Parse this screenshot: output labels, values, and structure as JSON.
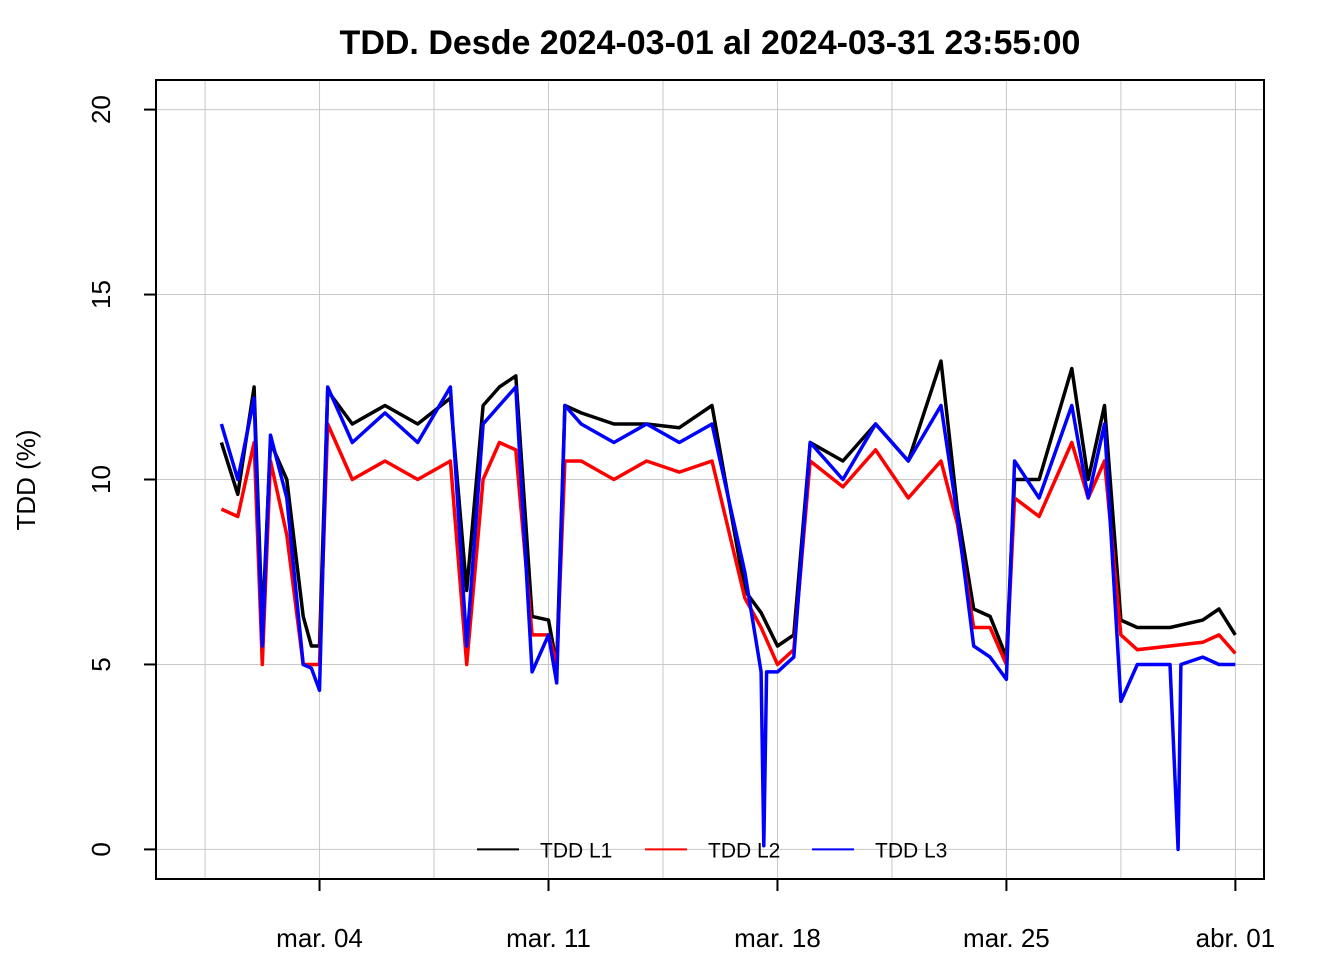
{
  "chart_data": {
    "type": "line",
    "title": "TDD. Desde  2024-03-01  al  2024-03-31 23:55:00",
    "xlabel": "",
    "ylabel": "TDD (%)",
    "xlim": [
      "2024-02-28 00:00",
      "2024-04-01 21:00"
    ],
    "ylim": [
      -0.8,
      20.8
    ],
    "y_ticks": [
      0,
      5,
      10,
      15,
      20
    ],
    "x_ticks": [
      {
        "date": "2024-03-04",
        "label": "mar. 04"
      },
      {
        "date": "2024-03-11",
        "label": "mar. 11"
      },
      {
        "date": "2024-03-18",
        "label": "mar. 18"
      },
      {
        "date": "2024-03-25",
        "label": "mar. 25"
      },
      {
        "date": "2024-04-01",
        "label": "abr. 01"
      }
    ],
    "grid": true,
    "legend_placement": "bottom",
    "x_unit": "date",
    "series": [
      {
        "name": "TDD L1",
        "color": "#000000",
        "x": [
          "2024-03-01 00:00",
          "2024-03-01 12:00",
          "2024-03-02 00:00",
          "2024-03-02 06:00",
          "2024-03-02 12:00",
          "2024-03-03 00:00",
          "2024-03-03 12:00",
          "2024-03-03 18:00",
          "2024-03-04 00:00",
          "2024-03-04 06:00",
          "2024-03-05 00:00",
          "2024-03-06 00:00",
          "2024-03-07 00:00",
          "2024-03-08 00:00",
          "2024-03-08 12:00",
          "2024-03-09 00:00",
          "2024-03-09 12:00",
          "2024-03-10 00:00",
          "2024-03-10 12:00",
          "2024-03-11 00:00",
          "2024-03-11 06:00",
          "2024-03-11 12:00",
          "2024-03-12 00:00",
          "2024-03-13 00:00",
          "2024-03-14 00:00",
          "2024-03-15 00:00",
          "2024-03-16 00:00",
          "2024-03-17 00:00",
          "2024-03-17 12:00",
          "2024-03-18 00:00",
          "2024-03-18 12:00",
          "2024-03-19 00:00",
          "2024-03-20 00:00",
          "2024-03-21 00:00",
          "2024-03-22 00:00",
          "2024-03-23 00:00",
          "2024-03-23 12:00",
          "2024-03-24 00:00",
          "2024-03-24 12:00",
          "2024-03-25 00:00",
          "2024-03-25 06:00",
          "2024-03-26 00:00",
          "2024-03-27 00:00",
          "2024-03-27 12:00",
          "2024-03-28 00:00",
          "2024-03-28 12:00",
          "2024-03-29 00:00",
          "2024-03-30 00:00",
          "2024-03-31 00:00",
          "2024-03-31 12:00",
          "2024-03-31 23:55"
        ],
        "values": [
          11.0,
          9.6,
          12.5,
          6.0,
          11.0,
          10.0,
          6.3,
          5.5,
          5.5,
          12.4,
          11.5,
          12.0,
          11.5,
          12.2,
          7.0,
          12.0,
          12.5,
          12.8,
          6.3,
          6.2,
          5.0,
          12.0,
          11.8,
          11.5,
          11.5,
          11.4,
          12.0,
          7.0,
          6.4,
          5.5,
          5.8,
          11.0,
          10.5,
          11.5,
          10.5,
          13.2,
          9.2,
          6.5,
          6.3,
          5.2,
          10.0,
          10.0,
          13.0,
          10.0,
          12.0,
          6.2,
          6.0,
          6.0,
          6.2,
          6.5,
          5.8
        ]
      },
      {
        "name": "TDD L2",
        "color": "#ff0000",
        "x": [
          "2024-03-01 00:00",
          "2024-03-01 12:00",
          "2024-03-02 00:00",
          "2024-03-02 06:00",
          "2024-03-02 12:00",
          "2024-03-03 00:00",
          "2024-03-03 12:00",
          "2024-03-03 18:00",
          "2024-03-04 00:00",
          "2024-03-04 06:00",
          "2024-03-05 00:00",
          "2024-03-06 00:00",
          "2024-03-07 00:00",
          "2024-03-08 00:00",
          "2024-03-08 12:00",
          "2024-03-09 00:00",
          "2024-03-09 12:00",
          "2024-03-10 00:00",
          "2024-03-10 12:00",
          "2024-03-11 00:00",
          "2024-03-11 06:00",
          "2024-03-11 12:00",
          "2024-03-12 00:00",
          "2024-03-13 00:00",
          "2024-03-14 00:00",
          "2024-03-15 00:00",
          "2024-03-16 00:00",
          "2024-03-17 00:00",
          "2024-03-17 12:00",
          "2024-03-18 00:00",
          "2024-03-18 12:00",
          "2024-03-19 00:00",
          "2024-03-20 00:00",
          "2024-03-21 00:00",
          "2024-03-22 00:00",
          "2024-03-23 00:00",
          "2024-03-23 12:00",
          "2024-03-24 00:00",
          "2024-03-24 12:00",
          "2024-03-25 00:00",
          "2024-03-25 06:00",
          "2024-03-26 00:00",
          "2024-03-27 00:00",
          "2024-03-27 12:00",
          "2024-03-28 00:00",
          "2024-03-28 12:00",
          "2024-03-29 00:00",
          "2024-03-30 00:00",
          "2024-03-31 00:00",
          "2024-03-31 12:00",
          "2024-03-31 23:55"
        ],
        "values": [
          9.2,
          9.0,
          11.0,
          5.0,
          10.5,
          8.5,
          5.0,
          5.0,
          5.0,
          11.5,
          10.0,
          10.5,
          10.0,
          10.5,
          5.0,
          10.0,
          11.0,
          10.8,
          5.8,
          5.8,
          5.0,
          10.5,
          10.5,
          10.0,
          10.5,
          10.2,
          10.5,
          6.8,
          6.0,
          5.0,
          5.4,
          10.5,
          9.8,
          10.8,
          9.5,
          10.5,
          8.8,
          6.0,
          6.0,
          5.0,
          9.5,
          9.0,
          11.0,
          9.5,
          10.5,
          5.8,
          5.4,
          5.5,
          5.6,
          5.8,
          5.3
        ]
      },
      {
        "name": "TDD L3",
        "color": "#0000ff",
        "x": [
          "2024-03-01 00:00",
          "2024-03-01 12:00",
          "2024-03-02 00:00",
          "2024-03-02 06:00",
          "2024-03-02 12:00",
          "2024-03-03 00:00",
          "2024-03-03 12:00",
          "2024-03-03 18:00",
          "2024-03-04 00:00",
          "2024-03-04 06:00",
          "2024-03-05 00:00",
          "2024-03-06 00:00",
          "2024-03-07 00:00",
          "2024-03-08 00:00",
          "2024-03-08 12:00",
          "2024-03-09 00:00",
          "2024-03-09 12:00",
          "2024-03-10 00:00",
          "2024-03-10 12:00",
          "2024-03-11 00:00",
          "2024-03-11 06:00",
          "2024-03-11 12:00",
          "2024-03-12 00:00",
          "2024-03-13 00:00",
          "2024-03-14 00:00",
          "2024-03-15 00:00",
          "2024-03-16 00:00",
          "2024-03-17 00:00",
          "2024-03-17 12:00",
          "2024-03-17 14:00",
          "2024-03-17 16:00",
          "2024-03-18 00:00",
          "2024-03-18 12:00",
          "2024-03-19 00:00",
          "2024-03-20 00:00",
          "2024-03-21 00:00",
          "2024-03-22 00:00",
          "2024-03-23 00:00",
          "2024-03-23 12:00",
          "2024-03-24 00:00",
          "2024-03-24 12:00",
          "2024-03-25 00:00",
          "2024-03-25 06:00",
          "2024-03-26 00:00",
          "2024-03-27 00:00",
          "2024-03-27 12:00",
          "2024-03-28 00:00",
          "2024-03-28 12:00",
          "2024-03-29 00:00",
          "2024-03-30 00:00",
          "2024-03-30 06:00",
          "2024-03-30 08:00",
          "2024-03-31 00:00",
          "2024-03-31 12:00",
          "2024-03-31 23:55"
        ],
        "values": [
          11.5,
          10.0,
          12.2,
          5.5,
          11.2,
          9.5,
          5.0,
          4.9,
          4.3,
          12.5,
          11.0,
          11.8,
          11.0,
          12.5,
          5.5,
          11.5,
          12.0,
          12.5,
          4.8,
          5.8,
          4.5,
          12.0,
          11.5,
          11.0,
          11.5,
          11.0,
          11.5,
          7.5,
          4.8,
          0.1,
          4.8,
          4.8,
          5.2,
          11.0,
          10.0,
          11.5,
          10.5,
          12.0,
          9.0,
          5.5,
          5.2,
          4.6,
          10.5,
          9.5,
          12.0,
          9.5,
          11.5,
          4.0,
          5.0,
          5.0,
          0.0,
          5.0,
          5.2,
          5.0,
          5.0
        ]
      }
    ]
  }
}
